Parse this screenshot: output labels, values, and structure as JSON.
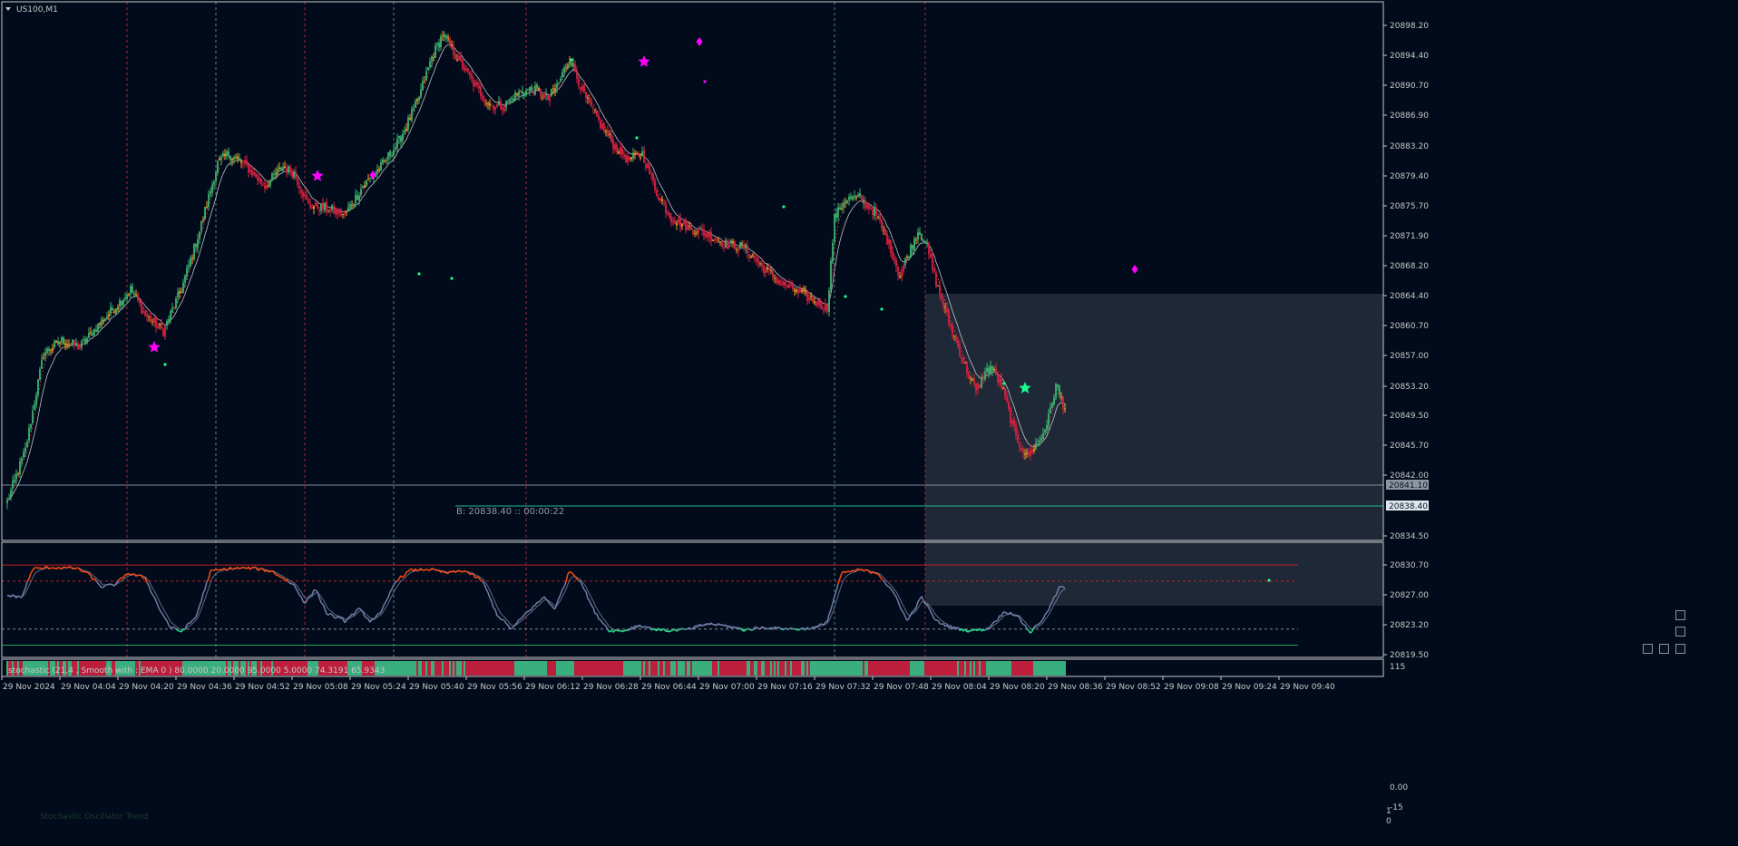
{
  "window": {
    "symbol_label": "US100,M1"
  },
  "colors": {
    "background": "#020b1b",
    "frame": "#c8c8c8",
    "bull": "#3db36f",
    "bear": "#d8203f",
    "neutral": "#f0a020",
    "ma_fast": "#e0e0e0",
    "ma_slow": "#e04060",
    "star_magenta": "#ff00ff",
    "star_green": "#1aff8c",
    "rect_fill": "#2a3340",
    "stoch_main": "#6f7fa8",
    "stoch_hot": "#ff4a10",
    "stoch_cold": "#22e08a",
    "level_high": "#c0202a",
    "level_low": "#22a060",
    "vline_green": "#6aa58a",
    "vline_red": "#c0303f",
    "bidline": "#1fb98a"
  },
  "main_axis": {
    "ticks": [
      "20898.20",
      "20894.40",
      "20890.70",
      "20886.90",
      "20883.20",
      "20879.40",
      "20875.70",
      "20871.90",
      "20868.20",
      "20864.40",
      "20860.70",
      "20857.00",
      "20853.20",
      "20849.50",
      "20845.70",
      "20842.00",
      "20834.50",
      "20830.70",
      "20827.00",
      "20823.20",
      "20819.50"
    ],
    "price_tags": [
      {
        "label": "20841.10"
      },
      {
        "label": "20838.40"
      }
    ]
  },
  "bid_label": "B: 20838.40  ::  00:00:22",
  "stochastic": {
    "label": "stochastic (21,4 , Smooth with : EMA  0 ) 80.0000 20.0000 95.0000 5.0000 74.3191 65.9343",
    "axis_ticks": [
      "115",
      "0.00",
      "-15"
    ]
  },
  "bottom_panel": {
    "label": "Stochastic Oscillator Trend",
    "axis_ticks": [
      "1",
      "0"
    ]
  },
  "time_axis": [
    "29 Nov 2024",
    "29 Nov 04:04",
    "29 Nov 04:20",
    "29 Nov 04:36",
    "29 Nov 04:52",
    "29 Nov 05:08",
    "29 Nov 05:24",
    "29 Nov 05:40",
    "29 Nov 05:56",
    "29 Nov 06:12",
    "29 Nov 06:28",
    "29 Nov 06:44",
    "29 Nov 07:00",
    "29 Nov 07:16",
    "29 Nov 07:32",
    "29 Nov 07:48",
    "29 Nov 08:04",
    "29 Nov 08:20",
    "29 Nov 08:36",
    "29 Nov 08:52",
    "29 Nov 09:08",
    "29 Nov 09:24",
    "29 Nov 09:40"
  ],
  "price_path": [
    {
      "t": 0,
      "p": 20824.0
    },
    {
      "t": 10,
      "p": 20832.0
    },
    {
      "t": 20,
      "p": 20847.0
    },
    {
      "t": 30,
      "p": 20849.0
    },
    {
      "t": 40,
      "p": 20848.0
    },
    {
      "t": 52,
      "p": 20852.0
    },
    {
      "t": 62,
      "p": 20855.0
    },
    {
      "t": 68,
      "p": 20857.0
    },
    {
      "t": 76,
      "p": 20853.0
    },
    {
      "t": 86,
      "p": 20850.5
    },
    {
      "t": 96,
      "p": 20857.0
    },
    {
      "t": 106,
      "p": 20866.0
    },
    {
      "t": 116,
      "p": 20876.5
    },
    {
      "t": 122,
      "p": 20878.0
    },
    {
      "t": 132,
      "p": 20876.0
    },
    {
      "t": 142,
      "p": 20873.0
    },
    {
      "t": 152,
      "p": 20876.0
    },
    {
      "t": 158,
      "p": 20875.0
    },
    {
      "t": 166,
      "p": 20870.0
    },
    {
      "t": 176,
      "p": 20869.5
    },
    {
      "t": 186,
      "p": 20868.5
    },
    {
      "t": 196,
      "p": 20873.0
    },
    {
      "t": 206,
      "p": 20876.0
    },
    {
      "t": 216,
      "p": 20880.0
    },
    {
      "t": 226,
      "p": 20886.0
    },
    {
      "t": 234,
      "p": 20893.0
    },
    {
      "t": 240,
      "p": 20896.5
    },
    {
      "t": 250,
      "p": 20892.0
    },
    {
      "t": 258,
      "p": 20888.5
    },
    {
      "t": 266,
      "p": 20885.5
    },
    {
      "t": 274,
      "p": 20885.5
    },
    {
      "t": 282,
      "p": 20887.5
    },
    {
      "t": 290,
      "p": 20888.0
    },
    {
      "t": 298,
      "p": 20886.5
    },
    {
      "t": 304,
      "p": 20889.0
    },
    {
      "t": 310,
      "p": 20893.0
    },
    {
      "t": 318,
      "p": 20887.0
    },
    {
      "t": 326,
      "p": 20883.0
    },
    {
      "t": 334,
      "p": 20879.5
    },
    {
      "t": 342,
      "p": 20877.0
    },
    {
      "t": 350,
      "p": 20878.0
    },
    {
      "t": 358,
      "p": 20872.0
    },
    {
      "t": 366,
      "p": 20868.0
    },
    {
      "t": 376,
      "p": 20866.5
    },
    {
      "t": 386,
      "p": 20865.5
    },
    {
      "t": 396,
      "p": 20864.0
    },
    {
      "t": 406,
      "p": 20863.5
    },
    {
      "t": 416,
      "p": 20860.5
    },
    {
      "t": 426,
      "p": 20858.0
    },
    {
      "t": 436,
      "p": 20856.5
    },
    {
      "t": 446,
      "p": 20855.0
    },
    {
      "t": 452,
      "p": 20854.0
    },
    {
      "t": 456,
      "p": 20868.0
    },
    {
      "t": 462,
      "p": 20871.0
    },
    {
      "t": 470,
      "p": 20871.0
    },
    {
      "t": 478,
      "p": 20869.0
    },
    {
      "t": 486,
      "p": 20864.0
    },
    {
      "t": 492,
      "p": 20859.0
    },
    {
      "t": 496,
      "p": 20862.0
    },
    {
      "t": 502,
      "p": 20866.0
    },
    {
      "t": 506,
      "p": 20864.5
    },
    {
      "t": 512,
      "p": 20858.0
    },
    {
      "t": 520,
      "p": 20851.0
    },
    {
      "t": 528,
      "p": 20845.0
    },
    {
      "t": 534,
      "p": 20841.0
    },
    {
      "t": 538,
      "p": 20843.5
    },
    {
      "t": 542,
      "p": 20845.0
    },
    {
      "t": 548,
      "p": 20842.0
    },
    {
      "t": 556,
      "p": 20834.0
    },
    {
      "t": 562,
      "p": 20831.0
    },
    {
      "t": 570,
      "p": 20834.0
    },
    {
      "t": 574,
      "p": 20837.0
    },
    {
      "t": 578,
      "p": 20842.0
    },
    {
      "t": 583,
      "p": 20838.4
    }
  ],
  "stoch_path": [
    {
      "t": 0,
      "v": 62
    },
    {
      "t": 8,
      "v": 60
    },
    {
      "t": 14,
      "v": 95
    },
    {
      "t": 24,
      "v": 97
    },
    {
      "t": 38,
      "v": 96
    },
    {
      "t": 44,
      "v": 90
    },
    {
      "t": 52,
      "v": 73
    },
    {
      "t": 60,
      "v": 76
    },
    {
      "t": 66,
      "v": 90
    },
    {
      "t": 76,
      "v": 84
    },
    {
      "t": 84,
      "v": 45
    },
    {
      "t": 90,
      "v": 22
    },
    {
      "t": 96,
      "v": 17
    },
    {
      "t": 104,
      "v": 35
    },
    {
      "t": 112,
      "v": 92
    },
    {
      "t": 124,
      "v": 96
    },
    {
      "t": 136,
      "v": 96
    },
    {
      "t": 146,
      "v": 92
    },
    {
      "t": 158,
      "v": 75
    },
    {
      "t": 164,
      "v": 53
    },
    {
      "t": 170,
      "v": 70
    },
    {
      "t": 176,
      "v": 40
    },
    {
      "t": 186,
      "v": 30
    },
    {
      "t": 194,
      "v": 45
    },
    {
      "t": 200,
      "v": 30
    },
    {
      "t": 206,
      "v": 40
    },
    {
      "t": 214,
      "v": 80
    },
    {
      "t": 222,
      "v": 93
    },
    {
      "t": 232,
      "v": 95
    },
    {
      "t": 242,
      "v": 90
    },
    {
      "t": 252,
      "v": 93
    },
    {
      "t": 262,
      "v": 80
    },
    {
      "t": 270,
      "v": 38
    },
    {
      "t": 278,
      "v": 20
    },
    {
      "t": 286,
      "v": 40
    },
    {
      "t": 296,
      "v": 60
    },
    {
      "t": 302,
      "v": 45
    },
    {
      "t": 310,
      "v": 93
    },
    {
      "t": 316,
      "v": 80
    },
    {
      "t": 324,
      "v": 40
    },
    {
      "t": 332,
      "v": 18
    },
    {
      "t": 340,
      "v": 18
    },
    {
      "t": 348,
      "v": 25
    },
    {
      "t": 356,
      "v": 20
    },
    {
      "t": 364,
      "v": 18
    },
    {
      "t": 376,
      "v": 20
    },
    {
      "t": 386,
      "v": 27
    },
    {
      "t": 396,
      "v": 24
    },
    {
      "t": 406,
      "v": 19
    },
    {
      "t": 416,
      "v": 22
    },
    {
      "t": 426,
      "v": 21
    },
    {
      "t": 436,
      "v": 20
    },
    {
      "t": 446,
      "v": 22
    },
    {
      "t": 452,
      "v": 30
    },
    {
      "t": 460,
      "v": 90
    },
    {
      "t": 470,
      "v": 94
    },
    {
      "t": 480,
      "v": 90
    },
    {
      "t": 490,
      "v": 60
    },
    {
      "t": 496,
      "v": 30
    },
    {
      "t": 504,
      "v": 60
    },
    {
      "t": 512,
      "v": 30
    },
    {
      "t": 520,
      "v": 22
    },
    {
      "t": 530,
      "v": 18
    },
    {
      "t": 540,
      "v": 20
    },
    {
      "t": 550,
      "v": 42
    },
    {
      "t": 556,
      "v": 38
    },
    {
      "t": 564,
      "v": 16
    },
    {
      "t": 572,
      "v": 36
    },
    {
      "t": 580,
      "v": 72
    }
  ]
}
